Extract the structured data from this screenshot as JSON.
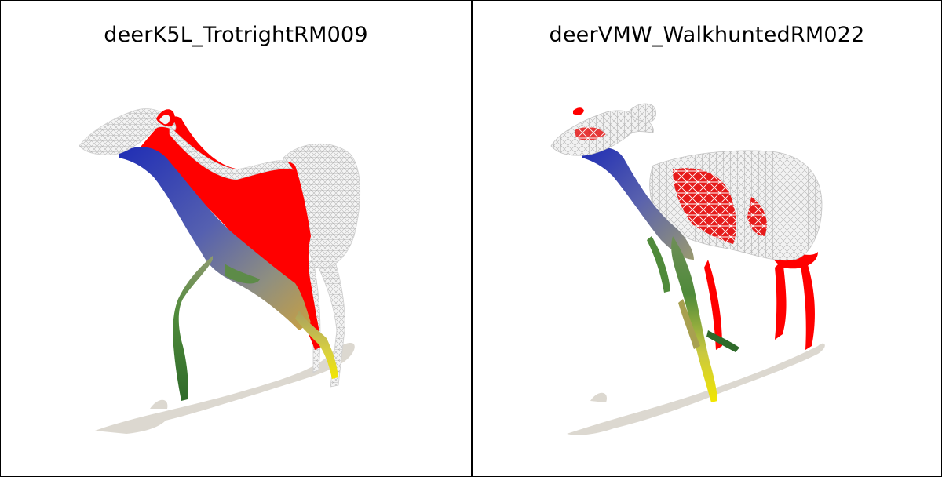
{
  "panels": [
    {
      "title": "deerK5L_TrotrightRM009",
      "render": "deer mesh with color-mapped correspondence (blue neck, red body, green/yellow legs), white wireframe hindquarters, drop shadow"
    },
    {
      "title": "deerVMW_WalkhuntedRM022",
      "render": "deer mesh with white wireframe torso and head, blue neck, red legs, green/yellow foreleg, drop shadow"
    }
  ],
  "colors": {
    "background": "#ffffff",
    "border": "#000000",
    "shadow": "#dcd8d0",
    "red": "#ff0000",
    "blue": "#1f2db5",
    "green": "#4f8a3a",
    "yellow": "#f2e600",
    "wire": "#e8e8e8"
  }
}
